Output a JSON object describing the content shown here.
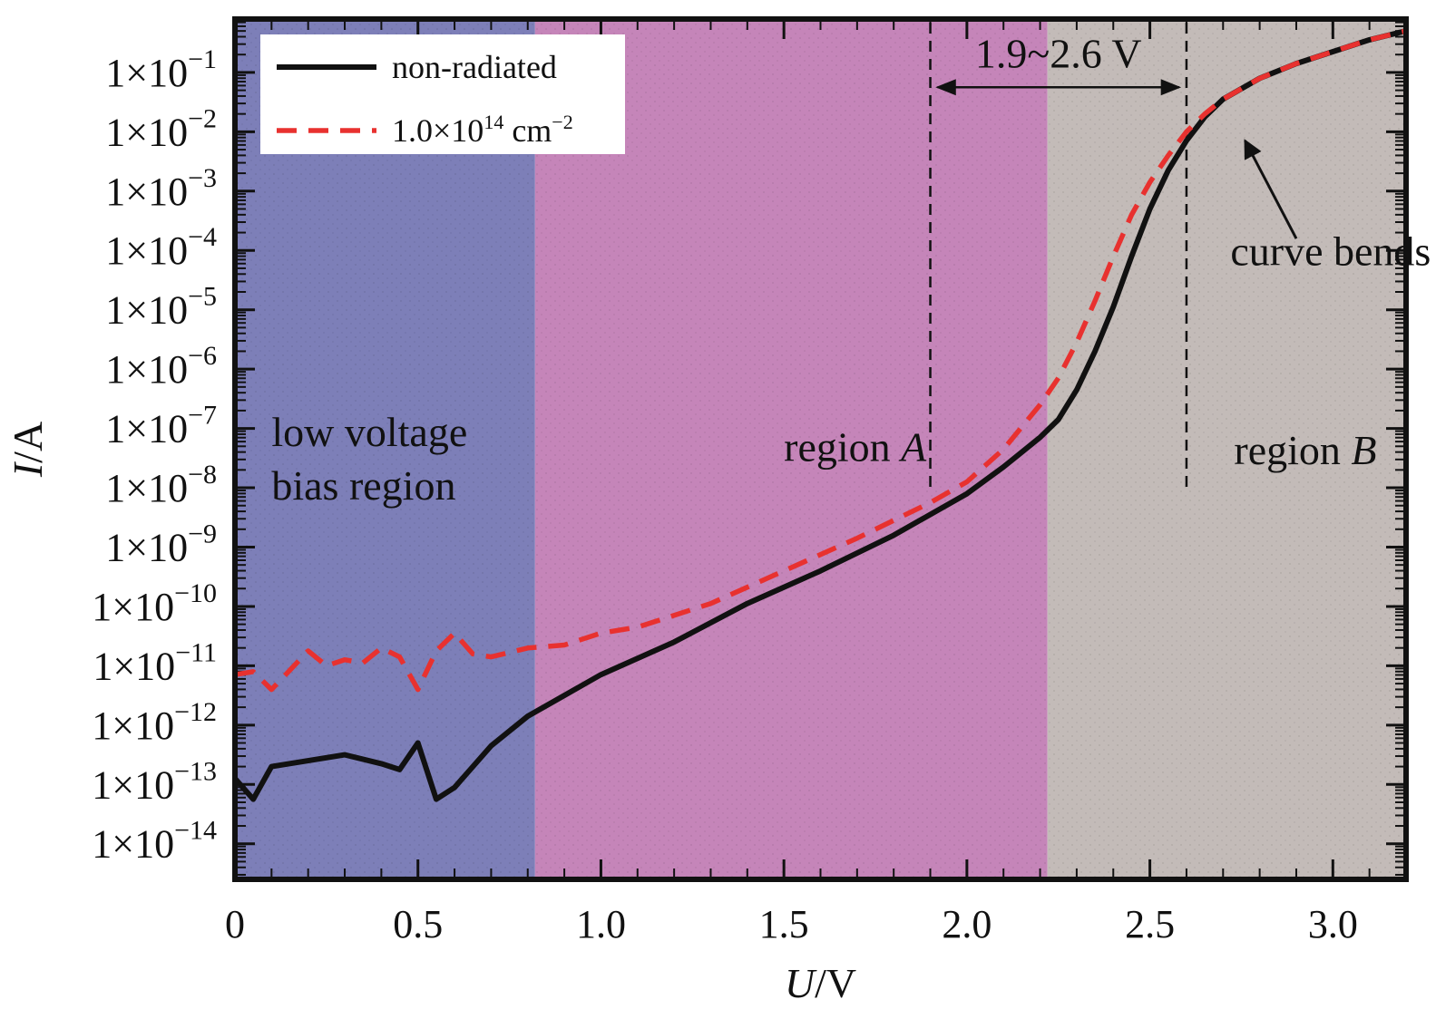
{
  "chart_data": {
    "type": "line",
    "title": "",
    "xlabel": {
      "var": "U",
      "unit": "/V"
    },
    "ylabel": {
      "var": "I",
      "unit": "/A"
    },
    "xlim": [
      0,
      3.2
    ],
    "ylim_exp": [
      -14.6,
      -0.1
    ],
    "y_scale": "log",
    "grid": false,
    "legend_position": "top-left",
    "x_ticks": [
      {
        "value": 0,
        "label": "0"
      },
      {
        "value": 0.5,
        "label": "0.5"
      },
      {
        "value": 1.0,
        "label": "1.0"
      },
      {
        "value": 1.5,
        "label": "1.5"
      },
      {
        "value": 2.0,
        "label": "2.0"
      },
      {
        "value": 2.5,
        "label": "2.5"
      },
      {
        "value": 3.0,
        "label": "3.0"
      }
    ],
    "y_ticks": [
      {
        "exp": -1,
        "mant": "1×10",
        "sup": "−1"
      },
      {
        "exp": -2,
        "mant": "1×10",
        "sup": "−2"
      },
      {
        "exp": -3,
        "mant": "1×10",
        "sup": "−3"
      },
      {
        "exp": -4,
        "mant": "1×10",
        "sup": "−4"
      },
      {
        "exp": -5,
        "mant": "1×10",
        "sup": "−5"
      },
      {
        "exp": -6,
        "mant": "1×10",
        "sup": "−6"
      },
      {
        "exp": -7,
        "mant": "1×10",
        "sup": "−7"
      },
      {
        "exp": -8,
        "mant": "1×10",
        "sup": "−8"
      },
      {
        "exp": -9,
        "mant": "1×10",
        "sup": "−9"
      },
      {
        "exp": -10,
        "mant": "1×10",
        "sup": "−10"
      },
      {
        "exp": -11,
        "mant": "1×10",
        "sup": "−11"
      },
      {
        "exp": -12,
        "mant": "1×10",
        "sup": "−12"
      },
      {
        "exp": -13,
        "mant": "1×10",
        "sup": "−13"
      },
      {
        "exp": -14,
        "mant": "1×10",
        "sup": "−14"
      }
    ],
    "regions": [
      {
        "x0": 0,
        "x1": 0.82,
        "color": "#7d7fb8",
        "lines": [
          "low voltage",
          "bias region"
        ],
        "label_x": 0.1,
        "label_exp": [
          -7.3,
          -8.2
        ]
      },
      {
        "x0": 0.82,
        "x1": 2.22,
        "color": "#c585b9",
        "lines": [
          "region "
        ],
        "italic": "A",
        "label_x": 1.5,
        "label_exp": [
          -7.55
        ]
      },
      {
        "x0": 2.22,
        "x1": 3.2,
        "color": "#c3bbb8",
        "lines": [
          "region "
        ],
        "italic": "B",
        "label_x": 2.73,
        "label_exp": [
          -7.6
        ]
      }
    ],
    "series": [
      {
        "name": "non-radiated",
        "color": "#111111",
        "dash": "none",
        "x": [
          0,
          0.05,
          0.1,
          0.2,
          0.3,
          0.4,
          0.45,
          0.5,
          0.55,
          0.6,
          0.7,
          0.8,
          0.9,
          1.0,
          1.2,
          1.4,
          1.6,
          1.8,
          2.0,
          2.1,
          2.2,
          2.25,
          2.3,
          2.35,
          2.4,
          2.45,
          2.5,
          2.55,
          2.6,
          2.65,
          2.7,
          2.8,
          2.9,
          3.0,
          3.1,
          3.2
        ],
        "exp": [
          -12.9,
          -13.25,
          -12.7,
          -12.6,
          -12.5,
          -12.65,
          -12.75,
          -12.3,
          -13.25,
          -13.05,
          -12.35,
          -11.85,
          -11.5,
          -11.15,
          -10.6,
          -9.95,
          -9.4,
          -8.8,
          -8.1,
          -7.65,
          -7.15,
          -6.85,
          -6.35,
          -5.7,
          -4.95,
          -4.1,
          -3.3,
          -2.65,
          -2.15,
          -1.75,
          -1.45,
          -1.1,
          -0.85,
          -0.65,
          -0.45,
          -0.3
        ]
      },
      {
        "name": "1.0×10¹⁴ cm⁻²",
        "legend_parts": [
          "1.0×10",
          "14",
          " cm",
          "−2"
        ],
        "color": "#e8312f",
        "dash": "22 13",
        "x": [
          0,
          0.05,
          0.1,
          0.2,
          0.25,
          0.3,
          0.35,
          0.4,
          0.45,
          0.5,
          0.55,
          0.6,
          0.65,
          0.7,
          0.8,
          0.9,
          1.0,
          1.1,
          1.3,
          1.5,
          1.7,
          1.9,
          2.0,
          2.1,
          2.2,
          2.25,
          2.3,
          2.35,
          2.4,
          2.45,
          2.5,
          2.55,
          2.6,
          2.65,
          2.7,
          2.8,
          2.9,
          3.0,
          3.1,
          3.2
        ],
        "exp": [
          -11.15,
          -11.1,
          -11.4,
          -10.75,
          -11.0,
          -10.9,
          -10.95,
          -10.7,
          -10.85,
          -11.4,
          -10.75,
          -10.45,
          -10.8,
          -10.85,
          -10.7,
          -10.65,
          -10.45,
          -10.35,
          -9.95,
          -9.4,
          -8.85,
          -8.25,
          -7.9,
          -7.35,
          -6.6,
          -6.15,
          -5.55,
          -4.85,
          -4.1,
          -3.4,
          -2.85,
          -2.4,
          -2.0,
          -1.7,
          -1.45,
          -1.1,
          -0.85,
          -0.65,
          -0.45,
          -0.3
        ]
      }
    ],
    "annotations": {
      "span_label": "1.9~2.6 V",
      "span_x": [
        1.9,
        2.6
      ],
      "span_arrow_exp": -1.25,
      "span_label_exp": -0.7,
      "bend_label": "curve bends",
      "bend_label_pos": {
        "x": 2.72,
        "exp": -4.25
      },
      "bend_arrow": {
        "x_from": 2.9,
        "exp_from": -3.8,
        "x_to": 2.76,
        "exp_to": -2.15
      }
    }
  }
}
